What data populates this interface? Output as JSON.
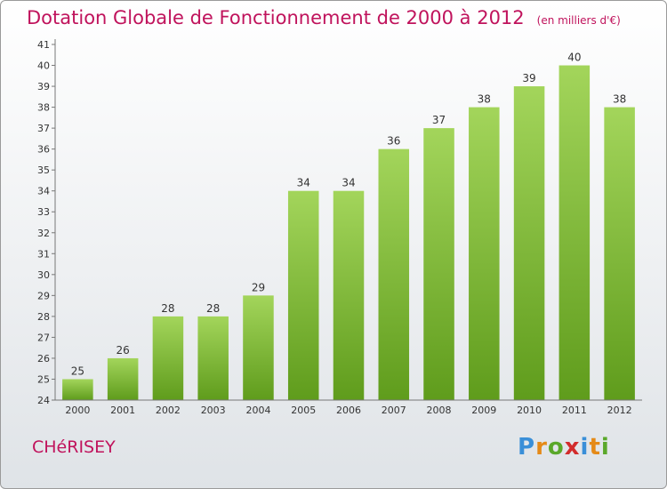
{
  "header": {
    "title": "Dotation Globale de Fonctionnement de 2000 à 2012",
    "subtitle": "(en milliers d'€)"
  },
  "footer": {
    "commune": "CHéRISEY",
    "brand": "Proxiti",
    "brand_letters": [
      {
        "char": "P",
        "color": "#3a8fd8"
      },
      {
        "char": "r",
        "color": "#e58a17"
      },
      {
        "char": "o",
        "color": "#5aa82a"
      },
      {
        "char": "x",
        "color": "#d22c2c"
      },
      {
        "char": "i",
        "color": "#3a8fd8"
      },
      {
        "char": "t",
        "color": "#e58a17"
      },
      {
        "char": "i",
        "color": "#5aa82a"
      }
    ]
  },
  "colors": {
    "accent": "#c0135c",
    "bar_light": "#a3d55b",
    "bar_dark": "#5f9c1c",
    "axis": "#777777",
    "label": "#333333"
  },
  "chart_data": {
    "type": "bar",
    "title": "Dotation Globale de Fonctionnement de 2000 à 2012",
    "subtitle": "(en milliers d'€)",
    "xlabel": "",
    "ylabel": "",
    "categories": [
      "2000",
      "2001",
      "2002",
      "2003",
      "2004",
      "2005",
      "2006",
      "2007",
      "2008",
      "2009",
      "2010",
      "2011",
      "2012"
    ],
    "values": [
      25,
      26,
      28,
      28,
      29,
      34,
      34,
      36,
      37,
      38,
      39,
      40,
      38
    ],
    "ylim": [
      24,
      41
    ],
    "yticks": [
      24,
      25,
      26,
      27,
      28,
      29,
      30,
      31,
      32,
      33,
      34,
      35,
      36,
      37,
      38,
      39,
      40,
      41
    ],
    "grid": false,
    "data_labels": true
  }
}
